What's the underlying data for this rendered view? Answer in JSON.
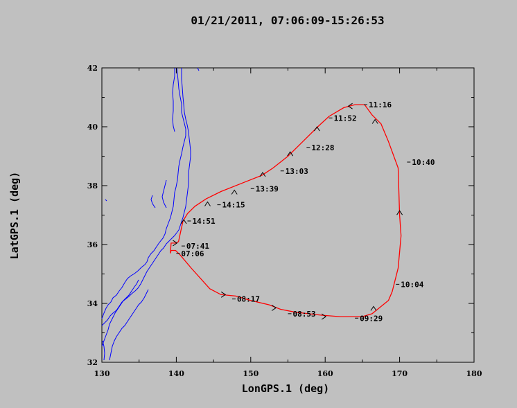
{
  "chart_data": {
    "type": "line",
    "title": "01/21/2011, 07:06:09-15:26:53",
    "xlabel": "LonGPS.1 (deg)",
    "ylabel": "LatGPS.1 (deg)",
    "xlim": [
      130,
      180
    ],
    "ylim": [
      32,
      42
    ],
    "xticks": [
      130,
      140,
      150,
      160,
      170,
      180
    ],
    "yticks": [
      32,
      34,
      36,
      38,
      40,
      42
    ],
    "grid": false,
    "colors": {
      "track": "#ff0000",
      "coastline": "#0000ff",
      "background": "#c0c0c0",
      "frame": "#000000"
    },
    "series": [
      {
        "x": [
          139.2,
          139.3,
          140.0,
          140.3,
          140.6,
          140.9,
          141.5,
          142.5,
          144.0,
          146.0,
          149.0,
          151.5,
          153.0,
          155.0,
          157.0,
          159.0,
          160.5,
          162.5,
          164.0,
          165.3,
          166.3,
          167.5,
          168.5,
          169.8,
          170.0,
          170.2,
          169.8,
          169.0,
          168.5,
          166.3,
          165.0,
          162.0,
          159.5,
          156.0,
          154.0,
          152.5,
          150.0,
          148.0,
          146.0,
          144.5,
          142.0,
          140.5,
          139.9,
          139.3,
          139.2
        ],
        "y": [
          35.7,
          36.05,
          36.05,
          36.1,
          36.45,
          36.8,
          37.05,
          37.3,
          37.55,
          37.8,
          38.1,
          38.35,
          38.6,
          39.0,
          39.5,
          40.0,
          40.35,
          40.65,
          40.75,
          40.75,
          40.4,
          40.1,
          39.5,
          38.6,
          37.0,
          36.3,
          35.2,
          34.4,
          34.1,
          33.65,
          33.55,
          33.55,
          33.6,
          33.7,
          33.8,
          33.95,
          34.1,
          34.25,
          34.3,
          34.5,
          35.2,
          35.65,
          35.8,
          35.8,
          35.7
        ]
      }
    ],
    "annotations": [
      {
        "text": "11:16",
        "x": 165.2,
        "y": 40.75
      },
      {
        "text": "11:52",
        "x": 160.5,
        "y": 40.3
      },
      {
        "text": "12:28",
        "x": 157.5,
        "y": 39.3
      },
      {
        "text": "13:03",
        "x": 154.0,
        "y": 38.5
      },
      {
        "text": "13:39",
        "x": 150.0,
        "y": 37.9
      },
      {
        "text": "14:15",
        "x": 145.5,
        "y": 37.35
      },
      {
        "text": "14:51",
        "x": 141.5,
        "y": 36.8
      },
      {
        "text": "07:41",
        "x": 140.7,
        "y": 35.95
      },
      {
        "text": "07:06",
        "x": 140.0,
        "y": 35.7
      },
      {
        "text": "10:40",
        "x": 171.0,
        "y": 38.8
      },
      {
        "text": "10:04",
        "x": 169.5,
        "y": 34.65
      },
      {
        "text": "09:29",
        "x": 164.0,
        "y": 33.5
      },
      {
        "text": "08:53",
        "x": 155.0,
        "y": 33.65
      },
      {
        "text": "08:17",
        "x": 147.5,
        "y": 34.15
      }
    ],
    "arrows": [
      {
        "x": 163.2,
        "y": 40.7,
        "dir": "left"
      },
      {
        "x": 158.9,
        "y": 39.95,
        "dir": "up"
      },
      {
        "x": 155.3,
        "y": 39.1,
        "dir": "up"
      },
      {
        "x": 151.6,
        "y": 38.4,
        "dir": "up"
      },
      {
        "x": 147.8,
        "y": 37.8,
        "dir": "up"
      },
      {
        "x": 144.2,
        "y": 37.4,
        "dir": "up"
      },
      {
        "x": 141.0,
        "y": 36.8,
        "dir": "up"
      },
      {
        "x": 140.0,
        "y": 36.05,
        "dir": "right"
      },
      {
        "x": 166.7,
        "y": 40.2,
        "dir": "up"
      },
      {
        "x": 170.0,
        "y": 37.1,
        "dir": "up"
      },
      {
        "x": 166.5,
        "y": 33.85,
        "dir": "up"
      },
      {
        "x": 160.0,
        "y": 33.55,
        "dir": "right"
      },
      {
        "x": 153.3,
        "y": 33.85,
        "dir": "right"
      },
      {
        "x": 146.5,
        "y": 34.3,
        "dir": "right"
      }
    ]
  }
}
